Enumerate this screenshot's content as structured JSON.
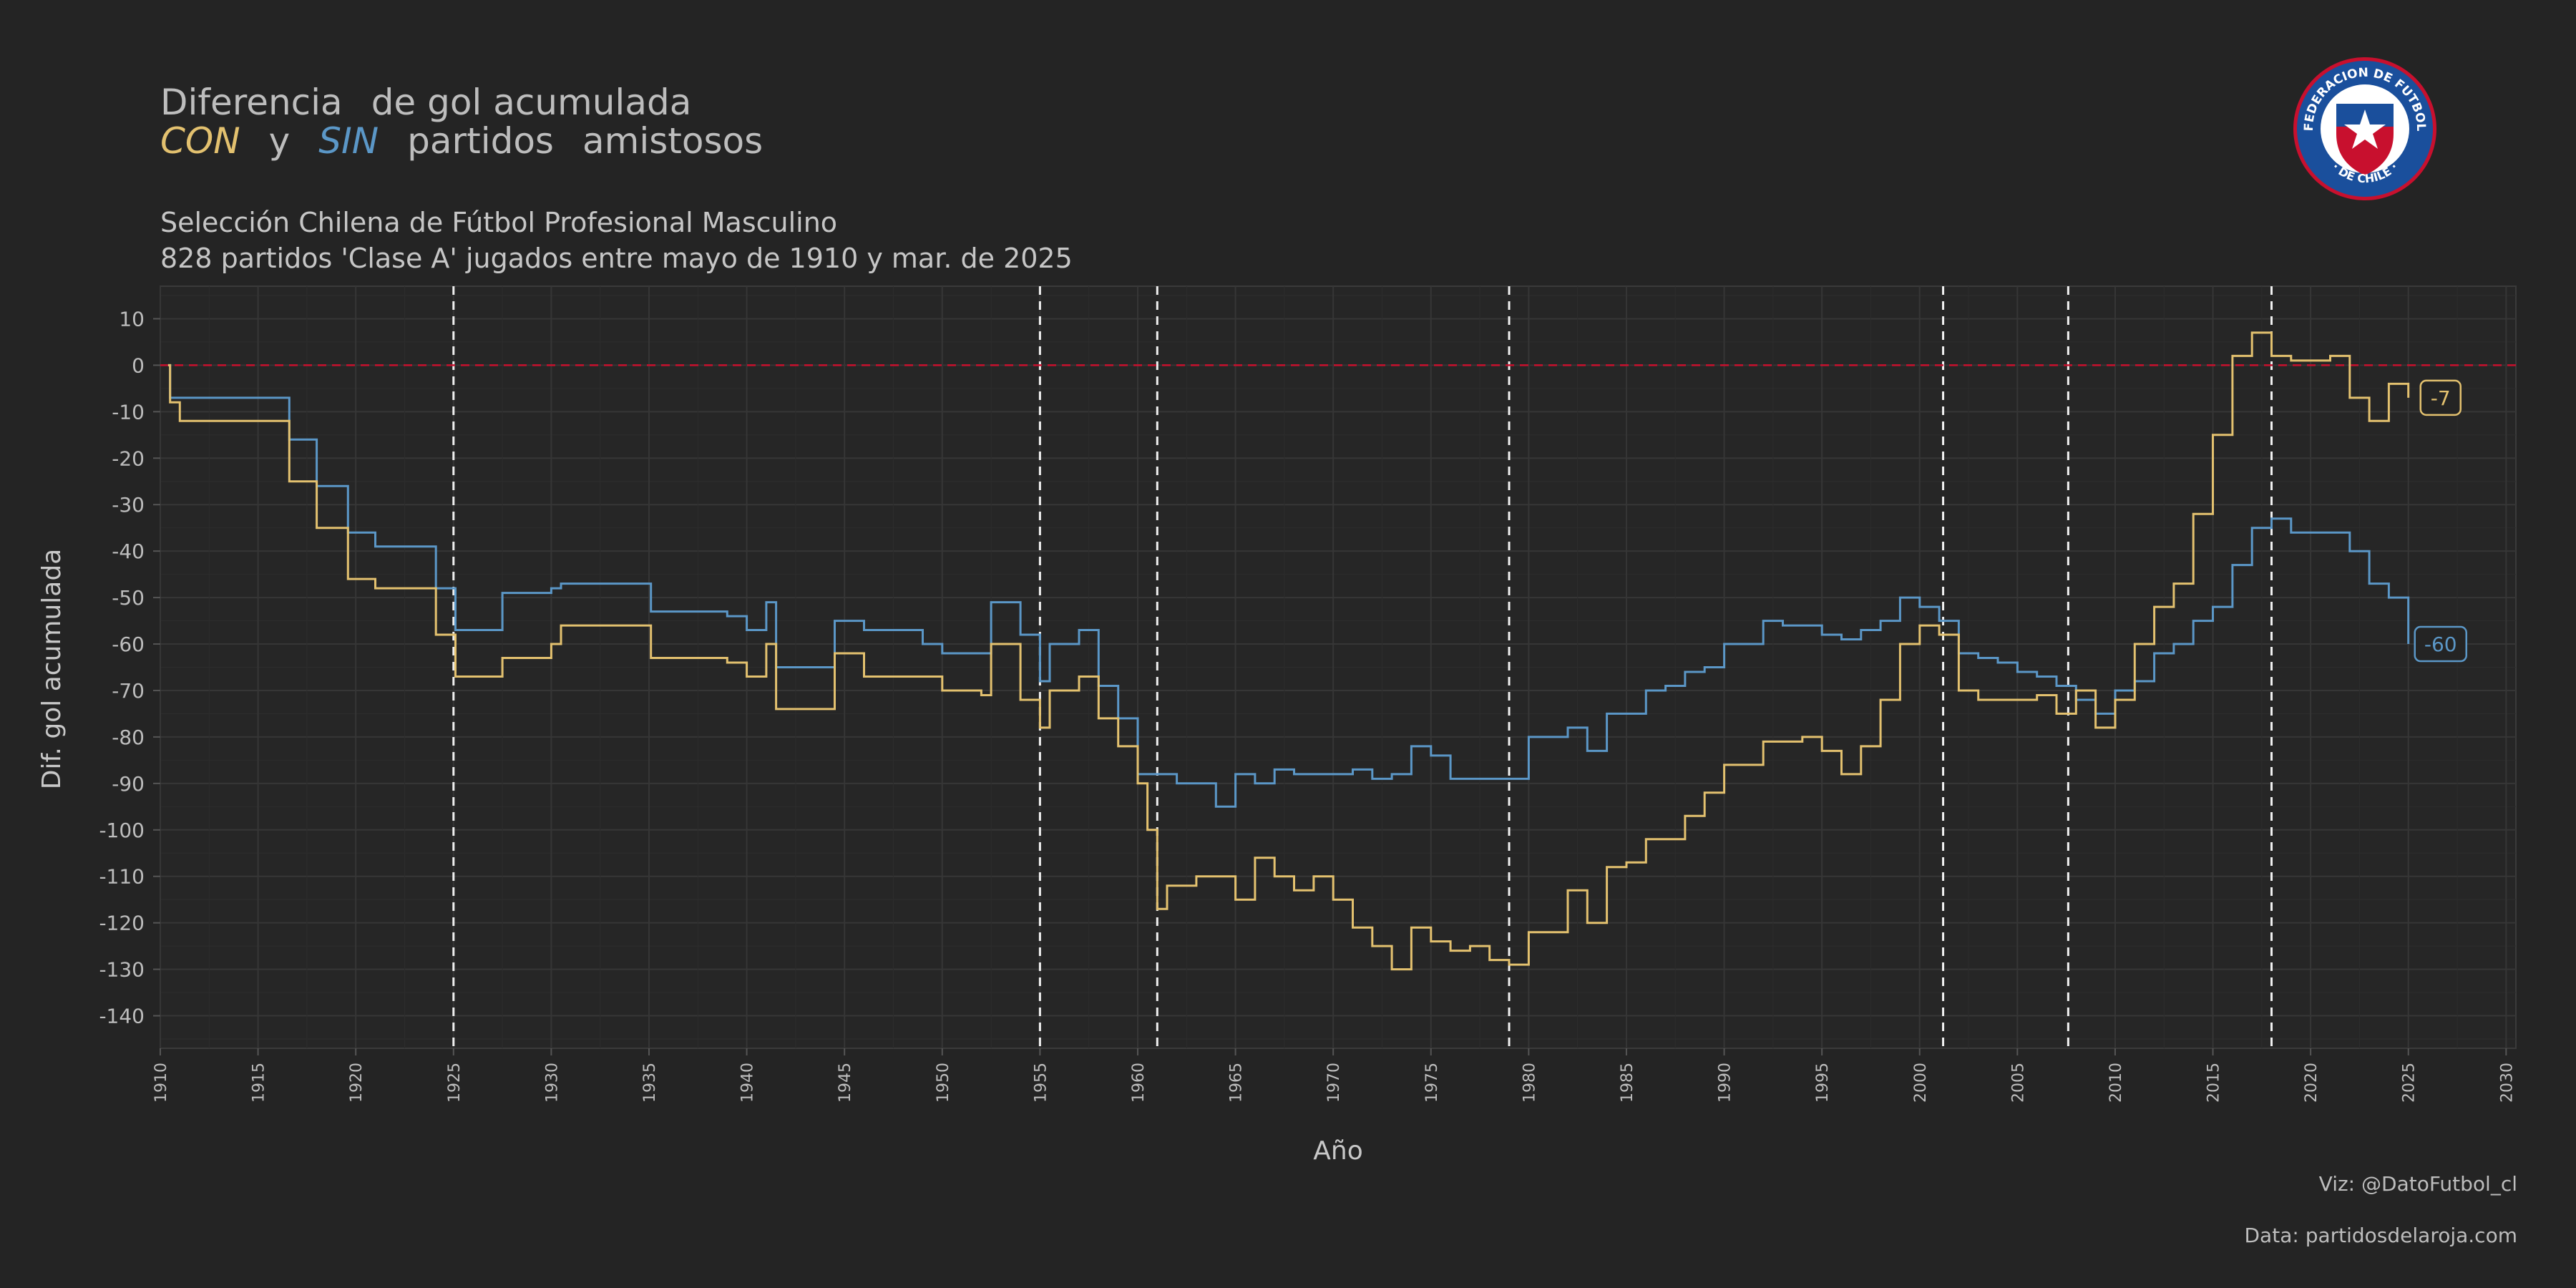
{
  "header": {
    "title_line1_parts": [
      "Diferencia",
      "de gol",
      "acumulada"
    ],
    "title_con": "CON",
    "title_y": "y",
    "title_sin": "SIN",
    "title_line2_rest": "partidos",
    "title_line2_rest2": "amistosos",
    "subtitle_line1": "Selección Chilena de Fútbol Profesional Masculino",
    "subtitle_line2": "828 partidos 'Clase A' jugados entre mayo de 1910 y mar. de 2025"
  },
  "footer": {
    "viz_credit": "Viz: @DatoFutbol_cl",
    "data_credit": "Data: partidosdelaroja.com"
  },
  "logo": {
    "top_text": "FEDERACION DE FUTBOL",
    "bottom_text": "· DE CHILE ·",
    "colors": {
      "ring": "#1a4f9c",
      "outer": "#c8102e",
      "star": "#ffffff"
    }
  },
  "colors": {
    "background": "#242424",
    "panel": "#262626",
    "grid": "#333333",
    "con": "#e3c16f",
    "sin": "#5b97c7",
    "zero_line": "#c8102e",
    "vlines": "#f0f0f0"
  },
  "chart_data": {
    "type": "line",
    "xlabel": "Año",
    "ylabel": "Dif. gol acumulada",
    "xlim": [
      1910,
      2030.5
    ],
    "ylim": [
      -147,
      17
    ],
    "x_ticks": [
      1910,
      1915,
      1920,
      1925,
      1930,
      1935,
      1940,
      1945,
      1950,
      1955,
      1960,
      1965,
      1970,
      1975,
      1980,
      1985,
      1990,
      1995,
      2000,
      2005,
      2010,
      2015,
      2020,
      2025,
      2030
    ],
    "y_ticks": [
      10,
      0,
      -10,
      -20,
      -30,
      -40,
      -50,
      -60,
      -70,
      -80,
      -90,
      -100,
      -110,
      -120,
      -130,
      -140
    ],
    "reference_line_y": 0,
    "vertical_lines_x": [
      1925.0,
      1955.0,
      1961.0,
      1979.0,
      2001.2,
      2007.6,
      2018.0
    ],
    "grid": true,
    "series": [
      {
        "key": "con",
        "end_label": "-7",
        "points": [
          [
            1910.4,
            0
          ],
          [
            1910.5,
            -8
          ],
          [
            1911.0,
            -12
          ],
          [
            1916.5,
            -12
          ],
          [
            1916.6,
            -25
          ],
          [
            1918.0,
            -35
          ],
          [
            1919.5,
            -35
          ],
          [
            1919.6,
            -46
          ],
          [
            1921.0,
            -48
          ],
          [
            1924.0,
            -48
          ],
          [
            1924.1,
            -58
          ],
          [
            1925.0,
            -58
          ],
          [
            1925.1,
            -67
          ],
          [
            1927.0,
            -67
          ],
          [
            1927.5,
            -63
          ],
          [
            1930.0,
            -60
          ],
          [
            1930.5,
            -56
          ],
          [
            1935.0,
            -56
          ],
          [
            1935.1,
            -63
          ],
          [
            1939.0,
            -64
          ],
          [
            1940.0,
            -67
          ],
          [
            1941.0,
            -60
          ],
          [
            1941.5,
            -74
          ],
          [
            1944.0,
            -74
          ],
          [
            1944.5,
            -62
          ],
          [
            1946.0,
            -67
          ],
          [
            1949.0,
            -67
          ],
          [
            1950.0,
            -70
          ],
          [
            1952.0,
            -71
          ],
          [
            1952.5,
            -60
          ],
          [
            1954.0,
            -72
          ],
          [
            1955.0,
            -78
          ],
          [
            1955.5,
            -70
          ],
          [
            1957.0,
            -67
          ],
          [
            1958.0,
            -76
          ],
          [
            1959.0,
            -82
          ],
          [
            1960.0,
            -90
          ],
          [
            1960.5,
            -100
          ],
          [
            1961.0,
            -117
          ],
          [
            1961.5,
            -112
          ],
          [
            1963.0,
            -110
          ],
          [
            1964.0,
            -110
          ],
          [
            1965.0,
            -115
          ],
          [
            1966.0,
            -106
          ],
          [
            1967.0,
            -110
          ],
          [
            1968.0,
            -113
          ],
          [
            1969.0,
            -110
          ],
          [
            1970.0,
            -115
          ],
          [
            1971.0,
            -121
          ],
          [
            1972.0,
            -125
          ],
          [
            1973.0,
            -130
          ],
          [
            1974.0,
            -121
          ],
          [
            1975.0,
            -124
          ],
          [
            1976.0,
            -126
          ],
          [
            1977.0,
            -125
          ],
          [
            1978.0,
            -128
          ],
          [
            1979.0,
            -129
          ],
          [
            1980.0,
            -122
          ],
          [
            1981.0,
            -122
          ],
          [
            1982.0,
            -113
          ],
          [
            1983.0,
            -120
          ],
          [
            1984.0,
            -108
          ],
          [
            1985.0,
            -107
          ],
          [
            1986.0,
            -102
          ],
          [
            1987.0,
            -102
          ],
          [
            1988.0,
            -97
          ],
          [
            1989.0,
            -92
          ],
          [
            1990.0,
            -86
          ],
          [
            1991.0,
            -86
          ],
          [
            1992.0,
            -81
          ],
          [
            1993.0,
            -81
          ],
          [
            1994.0,
            -80
          ],
          [
            1995.0,
            -83
          ],
          [
            1996.0,
            -88
          ],
          [
            1997.0,
            -82
          ],
          [
            1998.0,
            -72
          ],
          [
            1999.0,
            -60
          ],
          [
            2000.0,
            -56
          ],
          [
            2001.0,
            -58
          ],
          [
            2002.0,
            -70
          ],
          [
            2003.0,
            -72
          ],
          [
            2004.0,
            -72
          ],
          [
            2005.0,
            -72
          ],
          [
            2006.0,
            -71
          ],
          [
            2007.0,
            -75
          ],
          [
            2008.0,
            -70
          ],
          [
            2009.0,
            -78
          ],
          [
            2010.0,
            -72
          ],
          [
            2011.0,
            -60
          ],
          [
            2012.0,
            -52
          ],
          [
            2013.0,
            -47
          ],
          [
            2014.0,
            -32
          ],
          [
            2015.0,
            -15
          ],
          [
            2016.0,
            2
          ],
          [
            2017.0,
            7
          ],
          [
            2018.0,
            2
          ],
          [
            2019.0,
            1
          ],
          [
            2020.0,
            1
          ],
          [
            2021.0,
            2
          ],
          [
            2022.0,
            -7
          ],
          [
            2023.0,
            -12
          ],
          [
            2024.0,
            -4
          ],
          [
            2025.0,
            -7
          ]
        ]
      },
      {
        "key": "sin",
        "end_label": "-60",
        "points": [
          [
            1910.4,
            0
          ],
          [
            1910.5,
            -7
          ],
          [
            1916.5,
            -7
          ],
          [
            1916.6,
            -16
          ],
          [
            1918.0,
            -26
          ],
          [
            1919.5,
            -26
          ],
          [
            1919.6,
            -36
          ],
          [
            1921.0,
            -39
          ],
          [
            1924.0,
            -39
          ],
          [
            1924.1,
            -48
          ],
          [
            1925.0,
            -48
          ],
          [
            1925.1,
            -57
          ],
          [
            1927.0,
            -57
          ],
          [
            1927.5,
            -49
          ],
          [
            1930.0,
            -48
          ],
          [
            1930.5,
            -47
          ],
          [
            1935.0,
            -47
          ],
          [
            1935.1,
            -53
          ],
          [
            1939.0,
            -54
          ],
          [
            1940.0,
            -57
          ],
          [
            1941.0,
            -51
          ],
          [
            1941.5,
            -65
          ],
          [
            1944.0,
            -65
          ],
          [
            1944.5,
            -55
          ],
          [
            1946.0,
            -57
          ],
          [
            1949.0,
            -60
          ],
          [
            1950.0,
            -62
          ],
          [
            1952.0,
            -62
          ],
          [
            1952.5,
            -51
          ],
          [
            1954.0,
            -58
          ],
          [
            1955.0,
            -68
          ],
          [
            1955.5,
            -60
          ],
          [
            1957.0,
            -57
          ],
          [
            1958.0,
            -69
          ],
          [
            1959.0,
            -76
          ],
          [
            1960.0,
            -88
          ],
          [
            1961.0,
            -88
          ],
          [
            1962.0,
            -90
          ],
          [
            1963.0,
            -90
          ],
          [
            1964.0,
            -95
          ],
          [
            1965.0,
            -88
          ],
          [
            1966.0,
            -90
          ],
          [
            1967.0,
            -87
          ],
          [
            1968.0,
            -88
          ],
          [
            1969.0,
            -88
          ],
          [
            1970.0,
            -88
          ],
          [
            1971.0,
            -87
          ],
          [
            1972.0,
            -89
          ],
          [
            1973.0,
            -88
          ],
          [
            1974.0,
            -82
          ],
          [
            1975.0,
            -84
          ],
          [
            1976.0,
            -89
          ],
          [
            1977.0,
            -89
          ],
          [
            1978.0,
            -89
          ],
          [
            1979.0,
            -89
          ],
          [
            1980.0,
            -80
          ],
          [
            1981.0,
            -80
          ],
          [
            1982.0,
            -78
          ],
          [
            1983.0,
            -83
          ],
          [
            1984.0,
            -75
          ],
          [
            1985.0,
            -75
          ],
          [
            1986.0,
            -70
          ],
          [
            1987.0,
            -69
          ],
          [
            1988.0,
            -66
          ],
          [
            1989.0,
            -65
          ],
          [
            1990.0,
            -60
          ],
          [
            1991.0,
            -60
          ],
          [
            1992.0,
            -55
          ],
          [
            1993.0,
            -56
          ],
          [
            1994.0,
            -56
          ],
          [
            1995.0,
            -58
          ],
          [
            1996.0,
            -59
          ],
          [
            1997.0,
            -57
          ],
          [
            1998.0,
            -55
          ],
          [
            1999.0,
            -50
          ],
          [
            2000.0,
            -52
          ],
          [
            2001.0,
            -55
          ],
          [
            2002.0,
            -62
          ],
          [
            2003.0,
            -63
          ],
          [
            2004.0,
            -64
          ],
          [
            2005.0,
            -66
          ],
          [
            2006.0,
            -67
          ],
          [
            2007.0,
            -69
          ],
          [
            2008.0,
            -72
          ],
          [
            2009.0,
            -75
          ],
          [
            2010.0,
            -70
          ],
          [
            2011.0,
            -68
          ],
          [
            2012.0,
            -62
          ],
          [
            2013.0,
            -60
          ],
          [
            2014.0,
            -55
          ],
          [
            2015.0,
            -52
          ],
          [
            2016.0,
            -43
          ],
          [
            2017.0,
            -35
          ],
          [
            2018.0,
            -33
          ],
          [
            2019.0,
            -36
          ],
          [
            2020.0,
            -36
          ],
          [
            2021.0,
            -36
          ],
          [
            2022.0,
            -40
          ],
          [
            2023.0,
            -47
          ],
          [
            2024.0,
            -50
          ],
          [
            2025.0,
            -60
          ]
        ]
      }
    ]
  }
}
